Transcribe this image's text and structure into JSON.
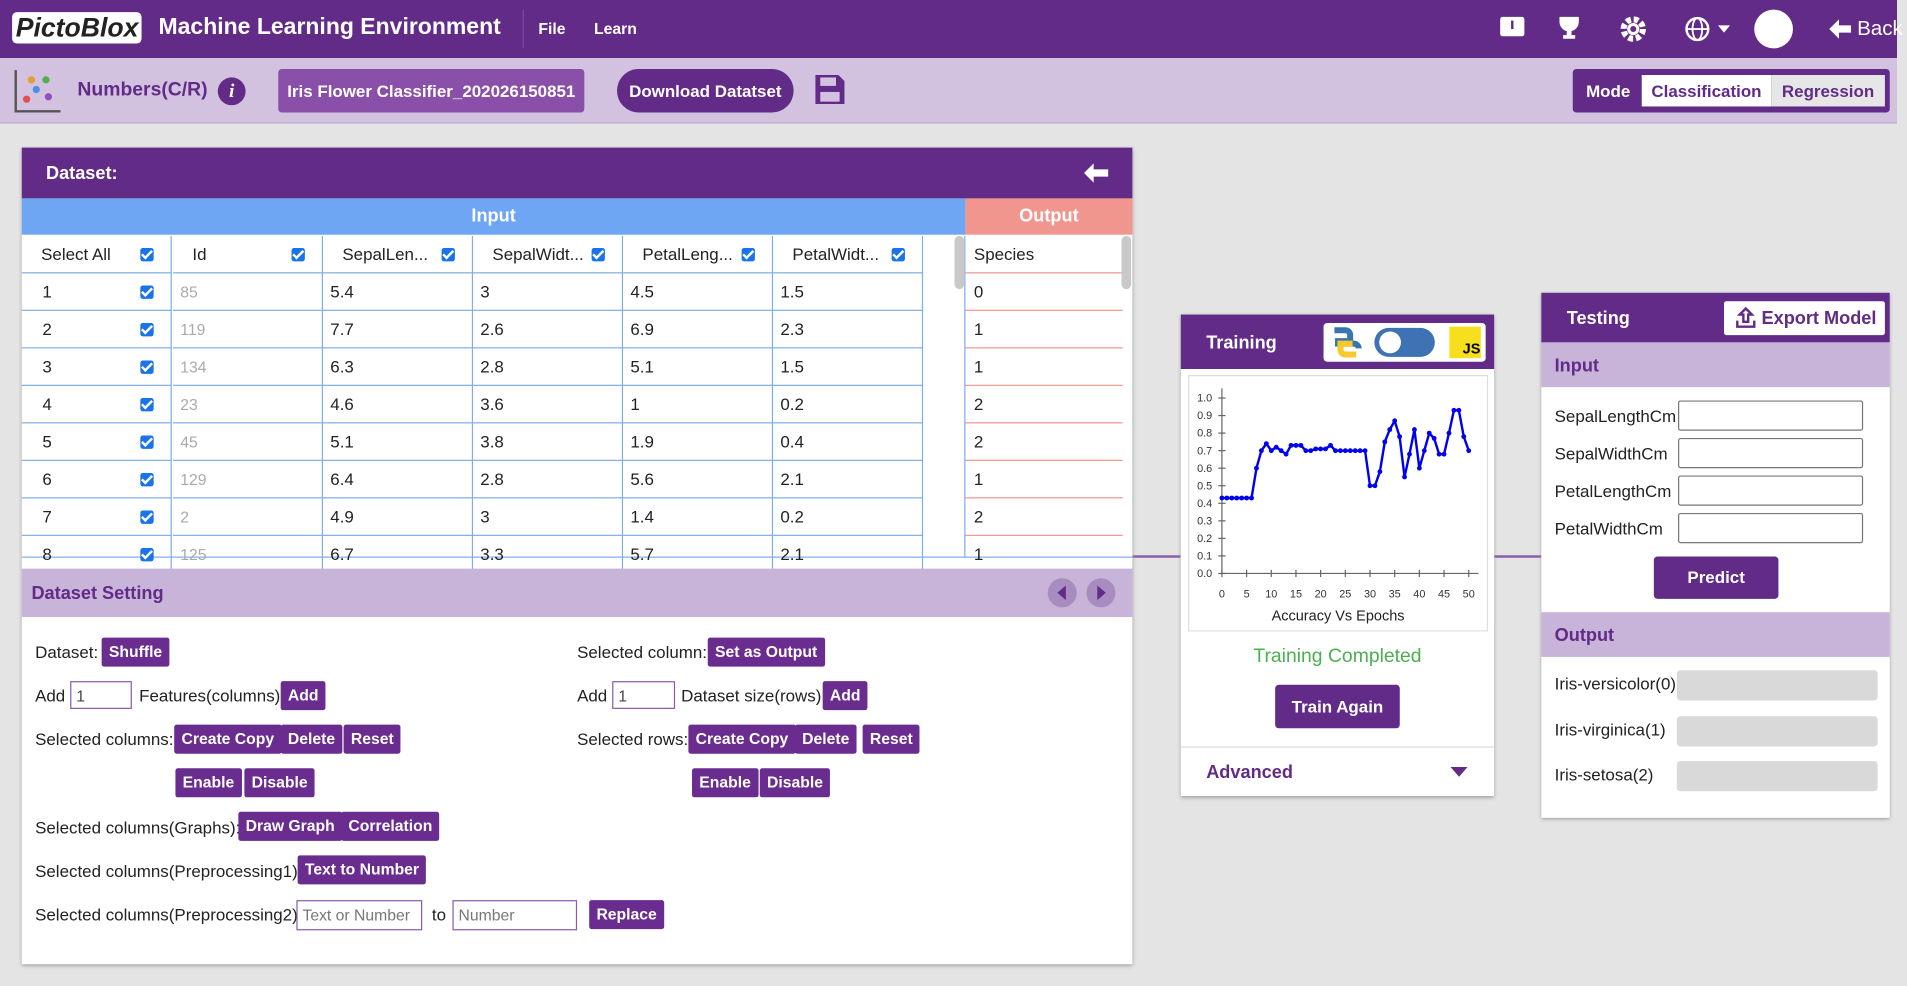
{
  "header": {
    "logo": "PictoBlox",
    "title": "Machine Learning Environment",
    "menu": [
      "File",
      "Learn"
    ],
    "back": "Back"
  },
  "toolbar": {
    "project": "Numbers(C/R)",
    "file_name": "Iris Flower Classifier_202026150851",
    "download": "Download Datatset",
    "mode_label": "Mode",
    "modes": [
      "Classification",
      "Regression"
    ]
  },
  "dataset": {
    "title": "Dataset:",
    "input_label": "Input",
    "output_label": "Output",
    "columns": [
      "Select All",
      "Id",
      "SepalLen...",
      "SepalWidt...",
      "PetalLeng...",
      "PetalWidt..."
    ],
    "output_column": "Species",
    "rows": [
      [
        1,
        85,
        5.4,
        3,
        4.5,
        1.5
      ],
      [
        2,
        119,
        7.7,
        2.6,
        6.9,
        2.3
      ],
      [
        3,
        134,
        6.3,
        2.8,
        5.1,
        1.5
      ],
      [
        4,
        23,
        4.6,
        3.6,
        1,
        0.2
      ],
      [
        5,
        45,
        5.1,
        3.8,
        1.9,
        0.4
      ],
      [
        6,
        129,
        6.4,
        2.8,
        5.6,
        2.1
      ],
      [
        7,
        2,
        4.9,
        3,
        1.4,
        0.2
      ],
      [
        8,
        125,
        6.7,
        3.3,
        5.7,
        2.1
      ]
    ],
    "output_values": [
      0,
      1,
      1,
      2,
      2,
      1,
      2,
      1
    ]
  },
  "setting": {
    "title": "Dataset Setting",
    "dataset_label": "Dataset:",
    "shuffle": "Shuffle",
    "add": "Add",
    "add_value": 1,
    "features": "Features(columns)",
    "add_btn": "Add",
    "selected_columns": "Selected columns:",
    "create_copy": "Create Copy",
    "delete": "Delete",
    "reset": "Reset",
    "enable": "Enable",
    "disable": "Disable",
    "graphs": "Selected columns(Graphs):",
    "draw_graph": "Draw Graph",
    "correlation": "Correlation",
    "pre1": "Selected columns(Preprocessing1):",
    "text_to_number": "Text to Number",
    "pre2": "Selected columns(Preprocessing2):",
    "placeholder_from": "Text or Number",
    "to": "to",
    "placeholder_to": "Number",
    "replace": "Replace",
    "selected_column": "Selected column:",
    "set_output": "Set as Output",
    "dataset_size": "Dataset size(rows)",
    "selected_rows": "Selected rows:"
  },
  "training": {
    "title": "Training",
    "status": "Training Completed",
    "train_again": "Train Again",
    "advanced": "Advanced",
    "chart": {
      "type": "line",
      "xlabel": "Accuracy Vs Epochs",
      "color": "#0000ee",
      "xlim": [
        0,
        50
      ],
      "ylim": [
        0,
        1
      ],
      "xticks": [
        0,
        5,
        10,
        15,
        20,
        25,
        30,
        35,
        40,
        45,
        50
      ],
      "yticks": [
        {
          "value": 0,
          "label": "0.0"
        },
        0.1,
        0.2,
        0.3,
        0.4,
        0.5,
        0.6,
        0.7,
        0.8,
        0.9,
        {
          "value": 1,
          "label": "1.0"
        }
      ],
      "x": [
        0,
        1,
        2,
        3,
        4,
        5,
        6,
        7,
        8,
        9,
        10,
        11,
        12,
        13,
        14,
        15,
        16,
        17,
        18,
        19,
        20,
        21,
        22,
        23,
        24,
        25,
        26,
        27,
        28,
        29,
        30,
        31,
        32,
        33,
        34,
        35,
        36,
        37,
        38,
        39,
        40,
        41,
        42,
        43,
        44,
        45,
        46,
        47,
        48,
        49,
        50
      ],
      "values": [
        0.43,
        0.43,
        0.43,
        0.43,
        0.43,
        0.43,
        0.43,
        0.6,
        0.7,
        0.74,
        0.7,
        0.72,
        0.7,
        0.68,
        0.73,
        0.73,
        0.73,
        0.7,
        0.7,
        0.71,
        0.71,
        0.71,
        0.73,
        0.7,
        0.7,
        0.7,
        0.7,
        0.7,
        0.7,
        0.7,
        0.5,
        0.5,
        0.58,
        0.75,
        0.82,
        0.87,
        0.78,
        0.55,
        0.68,
        0.82,
        0.6,
        0.7,
        0.8,
        0.77,
        0.68,
        0.68,
        0.8,
        0.93,
        0.93,
        0.78,
        0.7
      ]
    }
  },
  "testing": {
    "title": "Testing",
    "export": "Export Model",
    "input_label": "Input",
    "fields": [
      "SepalLengthCm",
      "SepalWidthCm",
      "PetalLengthCm",
      "PetalWidthCm"
    ],
    "predict": "Predict",
    "output_label": "Output",
    "classes": [
      "Iris-versicolor(0)",
      "Iris-virginica(1)",
      "Iris-setosa(2)"
    ]
  }
}
